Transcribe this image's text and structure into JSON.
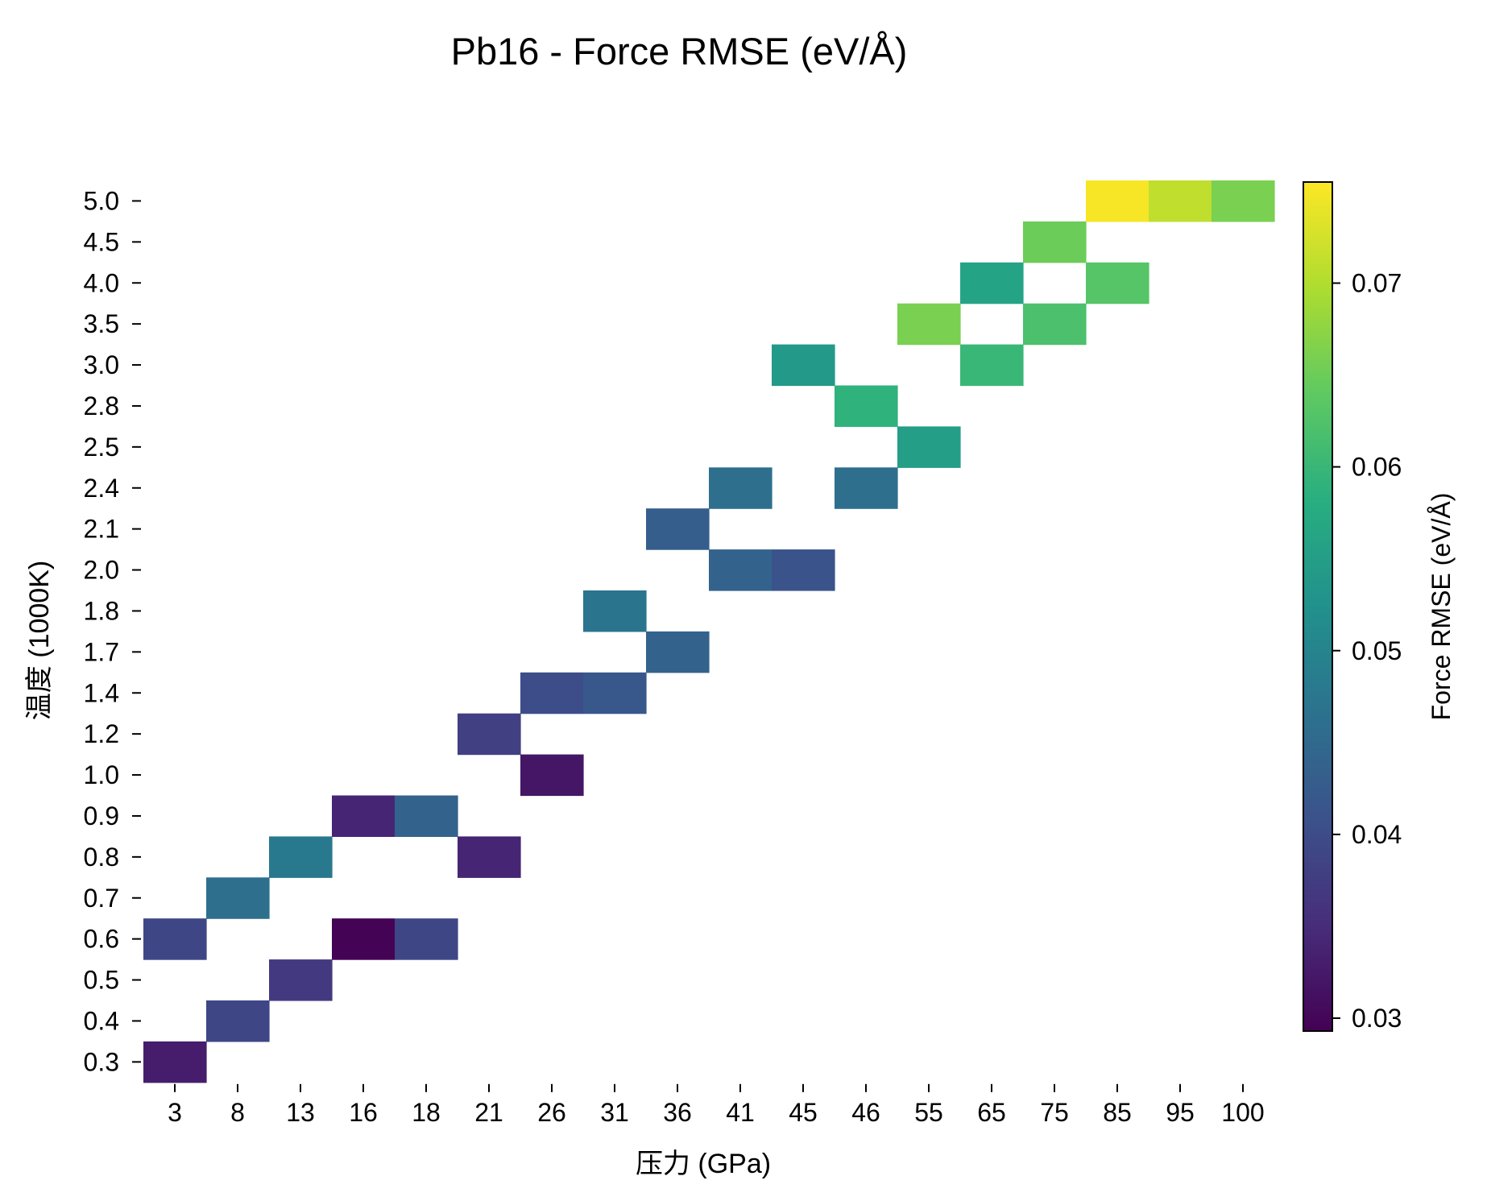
{
  "chart_data": {
    "type": "heatmap",
    "title": "Pb16 - Force RMSE (eV/Å)",
    "xlabel": "压力 (GPa)",
    "ylabel": "温度 (1000K)",
    "x_categories": [
      "3",
      "8",
      "13",
      "16",
      "18",
      "21",
      "26",
      "31",
      "36",
      "41",
      "45",
      "46",
      "55",
      "65",
      "75",
      "85",
      "95",
      "100"
    ],
    "y_categories": [
      "5.0",
      "4.5",
      "4.0",
      "3.5",
      "3.0",
      "2.8",
      "2.5",
      "2.4",
      "2.1",
      "2.0",
      "1.8",
      "1.7",
      "1.4",
      "1.2",
      "1.0",
      "0.9",
      "0.8",
      "0.7",
      "0.6",
      "0.5",
      "0.4",
      "0.3"
    ],
    "cells": [
      {
        "x": "85",
        "y": "5.0",
        "value": 0.075
      },
      {
        "x": "95",
        "y": "5.0",
        "value": 0.071
      },
      {
        "x": "100",
        "y": "5.0",
        "value": 0.066
      },
      {
        "x": "75",
        "y": "4.5",
        "value": 0.065
      },
      {
        "x": "65",
        "y": "4.0",
        "value": 0.056
      },
      {
        "x": "85",
        "y": "4.0",
        "value": 0.063
      },
      {
        "x": "55",
        "y": "3.5",
        "value": 0.066
      },
      {
        "x": "75",
        "y": "3.5",
        "value": 0.062
      },
      {
        "x": "45",
        "y": "3.0",
        "value": 0.054
      },
      {
        "x": "65",
        "y": "3.0",
        "value": 0.06
      },
      {
        "x": "46",
        "y": "2.8",
        "value": 0.059
      },
      {
        "x": "55",
        "y": "2.5",
        "value": 0.055
      },
      {
        "x": "41",
        "y": "2.4",
        "value": 0.046
      },
      {
        "x": "46",
        "y": "2.4",
        "value": 0.046
      },
      {
        "x": "36",
        "y": "2.1",
        "value": 0.043
      },
      {
        "x": "41",
        "y": "2.0",
        "value": 0.044
      },
      {
        "x": "45",
        "y": "2.0",
        "value": 0.041
      },
      {
        "x": "31",
        "y": "1.8",
        "value": 0.047
      },
      {
        "x": "36",
        "y": "1.7",
        "value": 0.044
      },
      {
        "x": "26",
        "y": "1.4",
        "value": 0.04
      },
      {
        "x": "31",
        "y": "1.4",
        "value": 0.042
      },
      {
        "x": "21",
        "y": "1.2",
        "value": 0.038
      },
      {
        "x": "26",
        "y": "1.0",
        "value": 0.032
      },
      {
        "x": "16",
        "y": "0.9",
        "value": 0.034
      },
      {
        "x": "18",
        "y": "0.9",
        "value": 0.044
      },
      {
        "x": "13",
        "y": "0.8",
        "value": 0.048
      },
      {
        "x": "21",
        "y": "0.8",
        "value": 0.034
      },
      {
        "x": "8",
        "y": "0.7",
        "value": 0.046
      },
      {
        "x": "3",
        "y": "0.6",
        "value": 0.039
      },
      {
        "x": "16",
        "y": "0.6",
        "value": 0.0295
      },
      {
        "x": "18",
        "y": "0.6",
        "value": 0.039
      },
      {
        "x": "13",
        "y": "0.5",
        "value": 0.037
      },
      {
        "x": "8",
        "y": "0.4",
        "value": 0.039
      },
      {
        "x": "3",
        "y": "0.3",
        "value": 0.033
      }
    ],
    "colorbar": {
      "label": "Force RMSE (eV/Å)",
      "min": 0.0293,
      "max": 0.0755,
      "ticks": [
        0.03,
        0.04,
        0.05,
        0.06,
        0.07
      ],
      "tick_labels": [
        "0.03",
        "0.04",
        "0.05",
        "0.06",
        "0.07"
      ],
      "colormap": "viridis"
    },
    "grid": false
  }
}
